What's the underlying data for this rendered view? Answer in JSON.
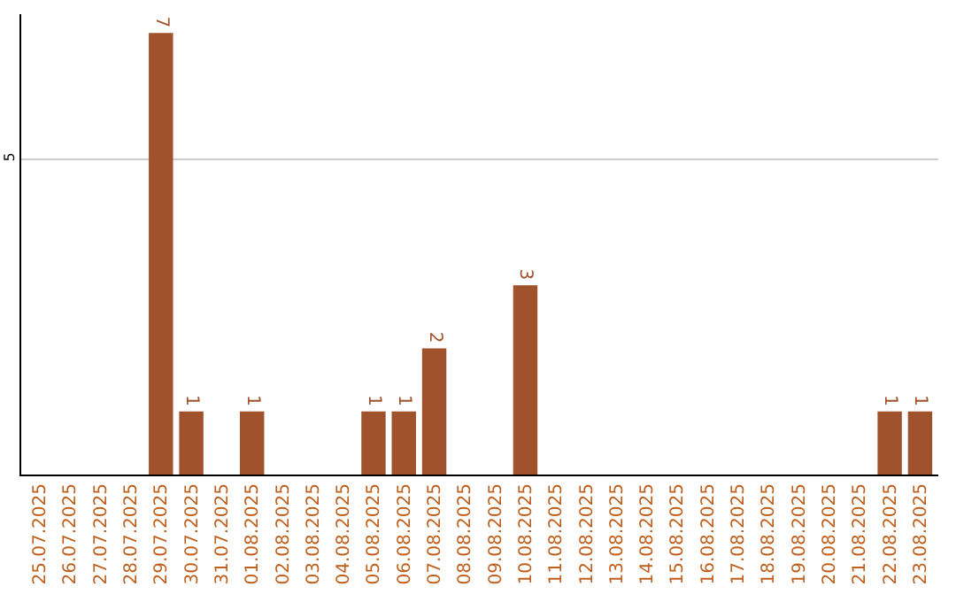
{
  "chart_data": {
    "type": "bar",
    "categories": [
      "25.07.2025",
      "26.07.2025",
      "27.07.2025",
      "28.07.2025",
      "29.07.2025",
      "30.07.2025",
      "31.07.2025",
      "01.08.2025",
      "02.08.2025",
      "03.08.2025",
      "04.08.2025",
      "05.08.2025",
      "06.08.2025",
      "07.08.2025",
      "08.08.2025",
      "09.08.2025",
      "10.08.2025",
      "11.08.2025",
      "12.08.2025",
      "13.08.2025",
      "14.08.2025",
      "15.08.2025",
      "16.08.2025",
      "17.08.2025",
      "18.08.2025",
      "19.08.2025",
      "20.08.2025",
      "21.08.2025",
      "22.08.2025",
      "23.08.2025"
    ],
    "values": [
      0,
      0,
      0,
      0,
      7,
      1,
      0,
      1,
      0,
      0,
      0,
      1,
      1,
      2,
      0,
      0,
      3,
      0,
      0,
      0,
      0,
      0,
      0,
      0,
      0,
      0,
      0,
      0,
      1,
      1
    ],
    "value_labels": [
      null,
      null,
      null,
      null,
      "7",
      "1",
      null,
      "1",
      null,
      null,
      null,
      "1",
      "1",
      "2",
      null,
      null,
      "3",
      null,
      null,
      null,
      null,
      null,
      null,
      null,
      null,
      null,
      null,
      null,
      "1",
      "1"
    ],
    "color": "#a0522d",
    "ylim": [
      0,
      7.3
    ],
    "yticks": [
      5
    ],
    "grid": "y"
  }
}
